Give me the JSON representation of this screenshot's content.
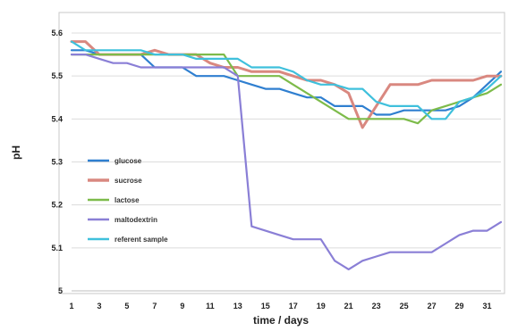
{
  "chart_data": {
    "type": "line",
    "xlabel": "time / days",
    "ylabel": "pH",
    "xlim": [
      1,
      32
    ],
    "ylim": [
      5,
      5.6
    ],
    "x_ticks": [
      1,
      3,
      5,
      7,
      9,
      11,
      13,
      15,
      17,
      19,
      21,
      23,
      25,
      27,
      29,
      31
    ],
    "y_ticks": [
      {
        "value": 5.0,
        "label": "5"
      },
      {
        "value": 5.1,
        "label": "5.1"
      },
      {
        "value": 5.2,
        "label": "5.2"
      },
      {
        "value": 5.3,
        "label": "5.3"
      },
      {
        "value": 5.4,
        "label": "5.4"
      },
      {
        "value": 5.5,
        "label": "5.5"
      },
      {
        "value": 5.6,
        "label": "5.6"
      }
    ],
    "grid": "horizontal",
    "legend_position": "left-middle",
    "x": [
      1,
      2,
      3,
      4,
      5,
      6,
      7,
      8,
      9,
      10,
      11,
      12,
      13,
      14,
      15,
      16,
      17,
      18,
      19,
      20,
      21,
      22,
      23,
      24,
      25,
      26,
      27,
      28,
      29,
      30,
      31,
      32
    ],
    "series": [
      {
        "name": "glucose",
        "color": "#2f7fd0",
        "values": [
          5.56,
          5.56,
          5.55,
          5.55,
          5.55,
          5.55,
          5.52,
          5.52,
          5.52,
          5.5,
          5.5,
          5.5,
          5.49,
          5.48,
          5.47,
          5.47,
          5.46,
          5.45,
          5.45,
          5.43,
          5.43,
          5.43,
          5.41,
          5.41,
          5.42,
          5.42,
          5.42,
          5.42,
          5.43,
          5.45,
          5.48,
          5.51
        ]
      },
      {
        "name": "sucrose",
        "color": "#d98880",
        "values": [
          5.58,
          5.58,
          5.55,
          5.55,
          5.55,
          5.55,
          5.56,
          5.55,
          5.55,
          5.55,
          5.53,
          5.52,
          5.52,
          5.51,
          5.51,
          5.51,
          5.5,
          5.49,
          5.49,
          5.48,
          5.46,
          5.38,
          5.43,
          5.48,
          5.48,
          5.48,
          5.49,
          5.49,
          5.49,
          5.49,
          5.5,
          5.5
        ]
      },
      {
        "name": "lactose",
        "color": "#7dbb4a",
        "values": [
          5.55,
          5.55,
          5.55,
          5.55,
          5.55,
          5.55,
          5.55,
          5.55,
          5.55,
          5.55,
          5.55,
          5.55,
          5.5,
          5.5,
          5.5,
          5.5,
          5.48,
          5.46,
          5.44,
          5.42,
          5.4,
          5.4,
          5.4,
          5.4,
          5.4,
          5.39,
          5.42,
          5.43,
          5.44,
          5.45,
          5.46,
          5.48
        ]
      },
      {
        "name": "maltodextrin",
        "color": "#8a7fd6",
        "values": [
          5.55,
          5.55,
          5.54,
          5.53,
          5.53,
          5.52,
          5.52,
          5.52,
          5.52,
          5.52,
          5.52,
          5.52,
          5.5,
          5.15,
          5.14,
          5.13,
          5.12,
          5.12,
          5.12,
          5.07,
          5.05,
          5.07,
          5.08,
          5.09,
          5.09,
          5.09,
          5.09,
          5.11,
          5.13,
          5.14,
          5.14,
          5.16
        ]
      },
      {
        "name": "referent sample",
        "color": "#3fc0dc",
        "values": [
          5.58,
          5.56,
          5.56,
          5.56,
          5.56,
          5.56,
          5.55,
          5.55,
          5.55,
          5.54,
          5.54,
          5.54,
          5.54,
          5.52,
          5.52,
          5.52,
          5.51,
          5.49,
          5.48,
          5.48,
          5.47,
          5.47,
          5.44,
          5.43,
          5.43,
          5.43,
          5.4,
          5.4,
          5.44,
          5.45,
          5.47,
          5.5
        ]
      }
    ]
  }
}
